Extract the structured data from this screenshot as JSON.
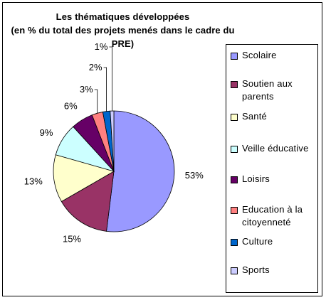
{
  "chart_data": {
    "type": "pie",
    "title_lines": [
      "Les thématiques développées",
      "(en % du total des projets menés dans le cadre du",
      "PRE)"
    ],
    "slices": [
      {
        "label": "Scolaire",
        "value": 53,
        "value_label": "53%",
        "color": "#9999ff"
      },
      {
        "label": "Soutien aux parents",
        "value": 15,
        "value_label": "15%",
        "color": "#993366"
      },
      {
        "label": "Santé",
        "value": 13,
        "value_label": "13%",
        "color": "#ffffcc"
      },
      {
        "label": "Veille éducative",
        "value": 9,
        "value_label": "9%",
        "color": "#ccffff"
      },
      {
        "label": "Loisirs",
        "value": 6,
        "value_label": "6%",
        "color": "#660066"
      },
      {
        "label": "Education à la citoyenneté",
        "value": 3,
        "value_label": "3%",
        "color": "#ff8080"
      },
      {
        "label": "Culture",
        "value": 2,
        "value_label": "2%",
        "color": "#0066cc"
      },
      {
        "label": "Sports",
        "value": 1,
        "value_label": "1%",
        "color": "#ccccff"
      }
    ],
    "legend_position": "right"
  }
}
